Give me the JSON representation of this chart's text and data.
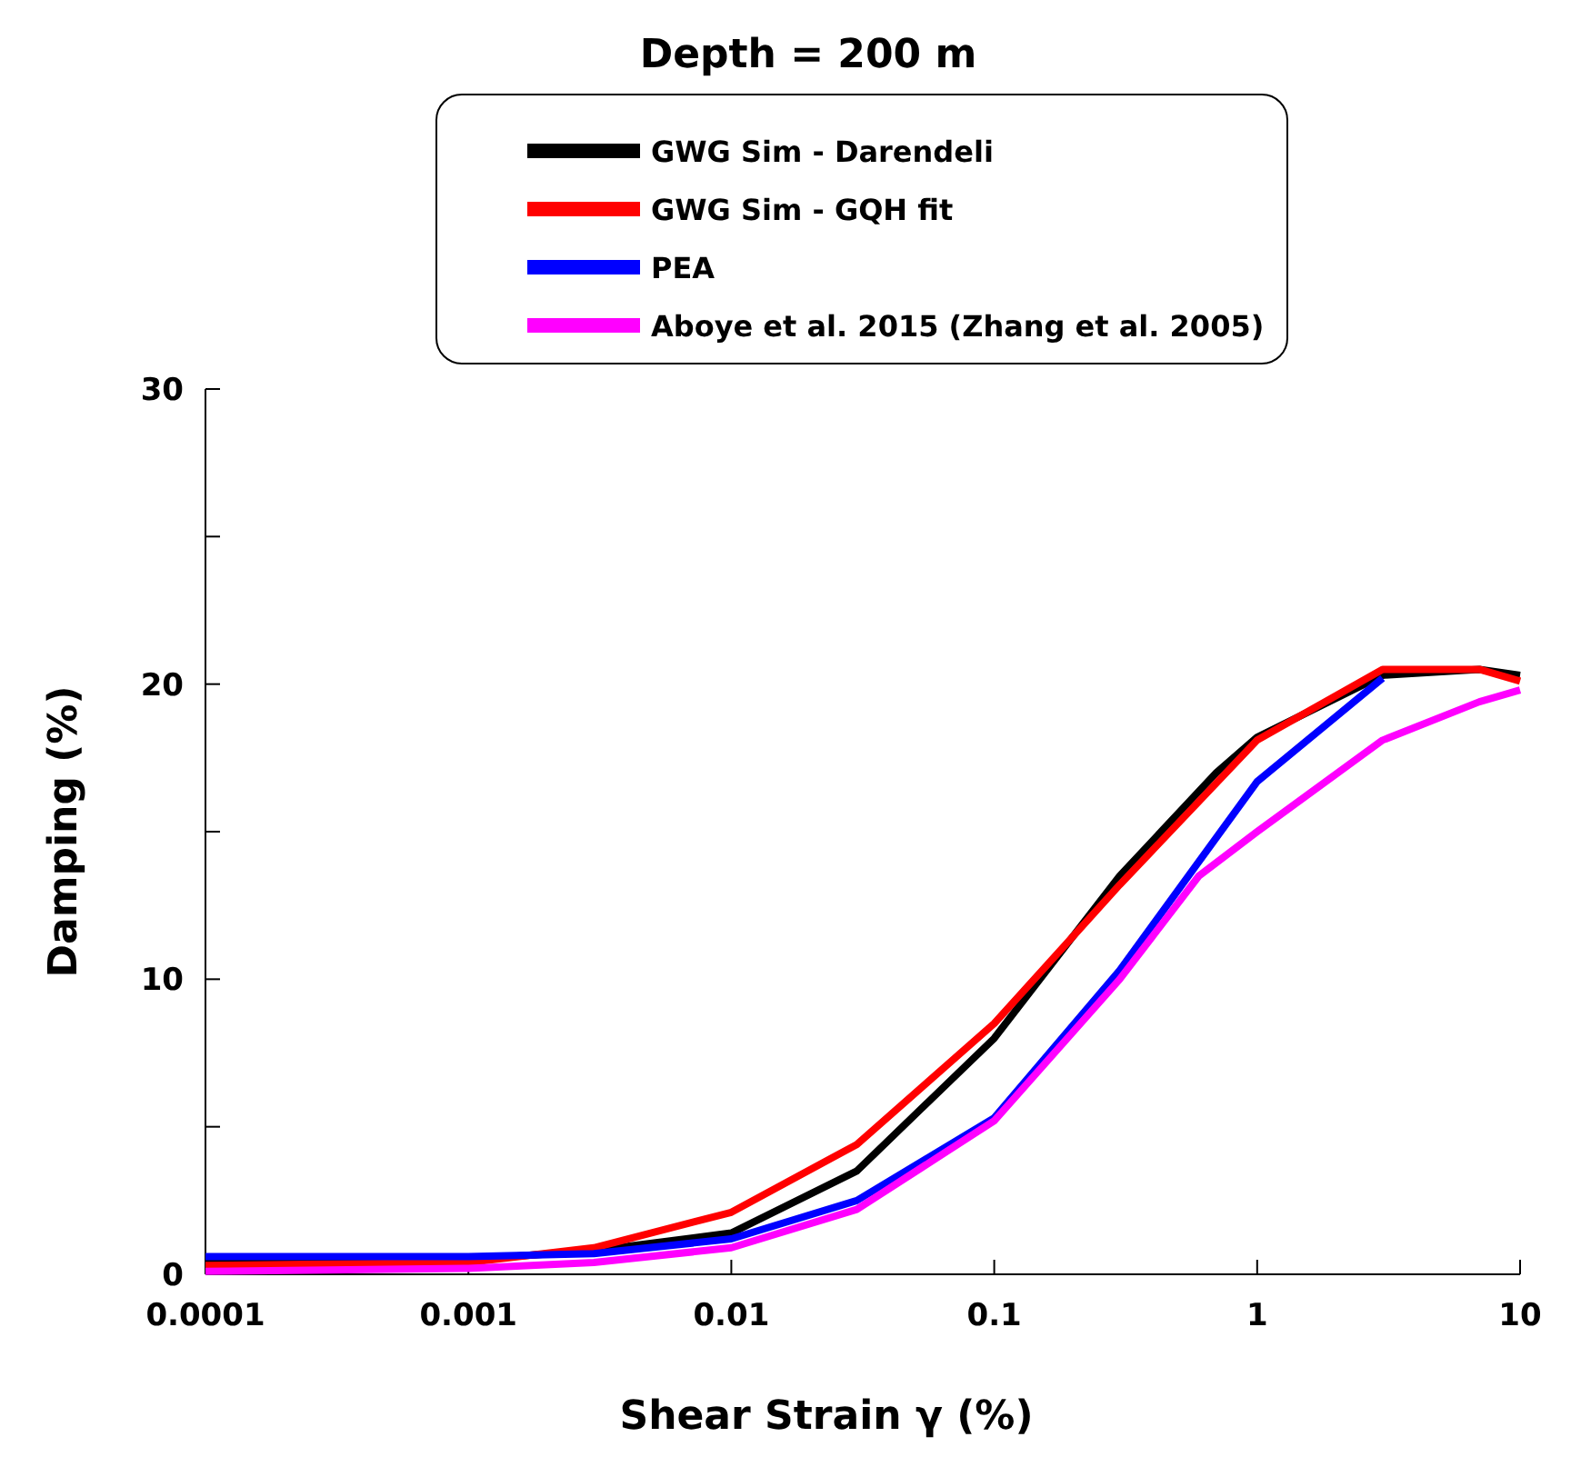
{
  "chart_data": {
    "type": "line",
    "title": "Depth = 200 m",
    "xlabel": "Shear Strain γ (%)",
    "ylabel": "Damping (%)",
    "log": "x",
    "xlim": [
      0.0001,
      10
    ],
    "xticks": [
      0.0001,
      0.001,
      0.01,
      0.1,
      1,
      10
    ],
    "ylim": [
      0,
      30
    ],
    "yticks": [
      0,
      {
        "value": 5,
        "label": null
      },
      10,
      {
        "value": 15,
        "label": null
      },
      20,
      {
        "value": 25,
        "label": null
      },
      30
    ],
    "grid": false,
    "legend": "top",
    "marker": "none",
    "line_style": "solid",
    "series": [
      {
        "name": "GWG Sim - Darendeli",
        "color": "#000000",
        "x": [
          0.0001,
          0.001,
          0.003,
          0.01,
          0.03,
          0.1,
          0.3,
          0.7,
          1,
          3,
          7,
          10
        ],
        "values": [
          0.5,
          0.5,
          0.8,
          1.4,
          3.5,
          8,
          13.5,
          17,
          18.2,
          20.3,
          20.5,
          20.3
        ]
      },
      {
        "name": "GWG Sim - GQH fit",
        "color": "#ff0000",
        "x": [
          0.0001,
          0.001,
          0.003,
          0.01,
          0.03,
          0.1,
          0.3,
          1,
          3,
          7,
          10
        ],
        "values": [
          0.3,
          0.4,
          0.9,
          2.1,
          4.4,
          8.5,
          13.2,
          18.1,
          20.5,
          20.5,
          20.1
        ]
      },
      {
        "name": "PEA",
        "color": "#0000ff",
        "x": [
          0.0001,
          0.001,
          0.003,
          0.01,
          0.03,
          0.1,
          0.3,
          1,
          3
        ],
        "values": [
          0.6,
          0.6,
          0.7,
          1.2,
          2.5,
          5.3,
          10.3,
          16.7,
          20.2
        ]
      },
      {
        "name": "Aboye et al. 2015 (Zhang et al. 2005)",
        "color": "#ff00ff",
        "x": [
          0.0001,
          0.001,
          0.003,
          0.01,
          0.03,
          0.1,
          0.3,
          0.6,
          1,
          3,
          7,
          10
        ],
        "values": [
          0.1,
          0.2,
          0.4,
          0.9,
          2.2,
          5.2,
          10,
          13.5,
          15,
          18.1,
          19.4,
          19.8
        ]
      }
    ]
  }
}
